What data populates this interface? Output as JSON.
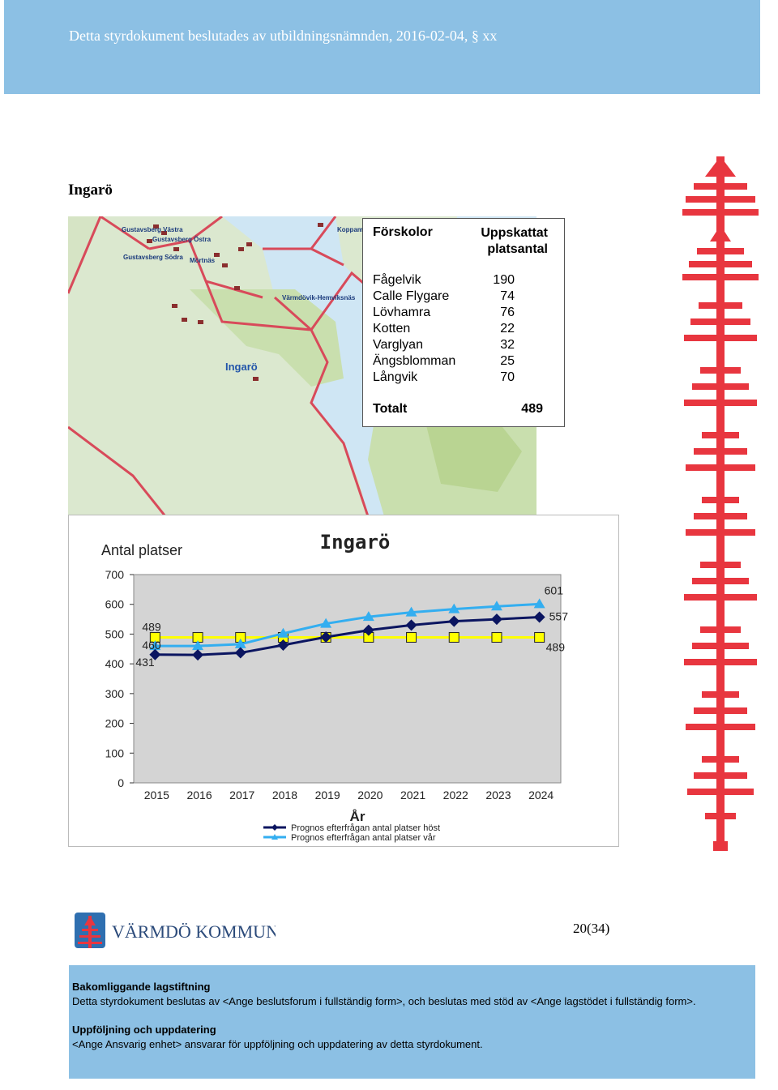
{
  "header": {
    "text": "Detta styrdokument beslutades av utbildningsnämnden, 2016-02-04, § xx"
  },
  "section": {
    "title": "Ingarö"
  },
  "map": {
    "labels": [
      "Gustavsberg Västra",
      "Gustavsberg Östra",
      "Gustavsberg Södra",
      "Mörtnäs",
      "Värmdövik-Hemviksnäs",
      "Koppamo",
      "Ingarö"
    ]
  },
  "table": {
    "col1": "Förskolor",
    "col2_line1": "Uppskattat",
    "col2_line2": "platsantal",
    "rows": [
      {
        "name": "Fågelvik",
        "value": "190"
      },
      {
        "name": "Calle Flygare",
        "value": "74"
      },
      {
        "name": "Lövhamra",
        "value": "76"
      },
      {
        "name": "Kotten",
        "value": "22"
      },
      {
        "name": "Varglyan",
        "value": "32"
      },
      {
        "name": "Ängsblomman",
        "value": "25"
      },
      {
        "name": "Långvik",
        "value": "70"
      }
    ],
    "total_label": "Totalt",
    "total_value": "489"
  },
  "chart_data": {
    "type": "line",
    "title": "Ingarö",
    "ylabel": "Antal platser",
    "xlabel": "År",
    "categories": [
      "2015",
      "2016",
      "2017",
      "2018",
      "2019",
      "2020",
      "2021",
      "2022",
      "2023",
      "2024"
    ],
    "yticks": [
      0,
      100,
      200,
      300,
      400,
      500,
      600,
      700
    ],
    "ylim": [
      0,
      700
    ],
    "grid": false,
    "legend_position": "bottom",
    "series": [
      {
        "name": "Prognos efterfrågan antal platser höst",
        "color": "#0b1560",
        "marker": "diamond",
        "values": [
          431,
          430,
          437,
          463,
          490,
          513,
          530,
          543,
          550,
          557
        ]
      },
      {
        "name": "Prognos efterfrågan antal platser vår",
        "color": "#33aef0",
        "marker": "triangle",
        "values": [
          460,
          460,
          466,
          502,
          535,
          558,
          573,
          584,
          593,
          601
        ]
      },
      {
        "name": "",
        "color": "#ffff00",
        "marker": "square",
        "values": [
          489,
          489,
          489,
          489,
          489,
          489,
          489,
          489,
          489,
          489
        ]
      }
    ],
    "data_labels": [
      "489",
      "460",
      "431",
      "601",
      "557",
      "489"
    ]
  },
  "footer": {
    "logo_text": "VÄRMDÖ KOMMUN",
    "page_number": "20(34)",
    "heading1": "Bakomliggande lagstiftning",
    "text1": "Detta styrdokument beslutas av <Ange beslutsforum i fullständig form>, och beslutas med stöd av <Ange lagstödet i fullständig form>.",
    "heading2": "Uppföljning och uppdatering",
    "text2": "<Ange Ansvarig enhet> ansvarar för uppföljning och uppdatering av detta styrdokument."
  },
  "colors": {
    "band": "#8cc0e4",
    "decor_red": "#e8363f"
  }
}
